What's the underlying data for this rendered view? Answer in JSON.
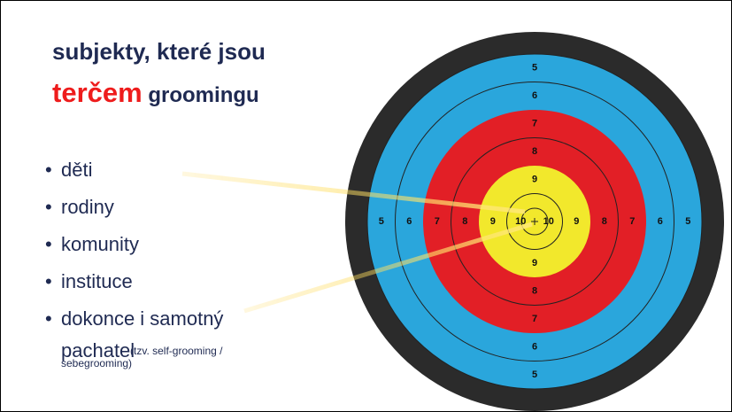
{
  "slide": {
    "title_line1": "subjekty, které jsou",
    "title_highlight": "terčem",
    "title_rest": "groomingu",
    "bullets": [
      "děti",
      "rodiny",
      "komunity",
      "instituce",
      "dokonce i samotný"
    ],
    "last_bullet_continuation": "pachatel",
    "last_bullet_note": "(tzv. self-grooming / sebegrooming)"
  },
  "target": {
    "rings": [
      "5",
      "6",
      "7",
      "8",
      "9",
      "10"
    ]
  }
}
